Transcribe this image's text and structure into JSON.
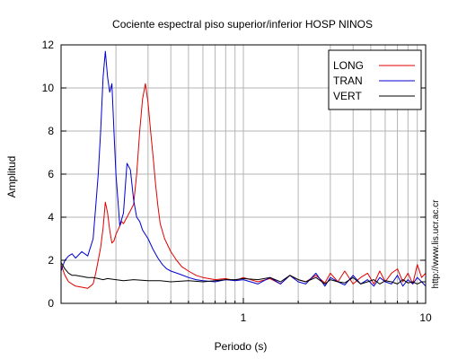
{
  "chart_data": {
    "type": "line",
    "title": "Cociente espectral piso superior/inferior  HOSP NINOS",
    "xlabel": "Periodo (s)",
    "ylabel": "Amplitud",
    "x_scale": "log",
    "xlim": [
      0.1,
      10
    ],
    "ylim": [
      0,
      12
    ],
    "x_tick_labels": [
      {
        "value": 1,
        "label": "1"
      },
      {
        "value": 10,
        "label": "10"
      }
    ],
    "y_ticks": [
      0,
      2,
      4,
      6,
      8,
      10,
      12
    ],
    "grid": true,
    "legend_position": "top-right",
    "credit": "http://www.lis.ucr.ac.cr",
    "series": [
      {
        "name": "LONG",
        "color": "#e00000",
        "x": [
          0.1,
          0.105,
          0.11,
          0.115,
          0.12,
          0.13,
          0.14,
          0.15,
          0.155,
          0.16,
          0.165,
          0.17,
          0.175,
          0.18,
          0.185,
          0.19,
          0.195,
          0.2,
          0.205,
          0.21,
          0.215,
          0.22,
          0.23,
          0.24,
          0.25,
          0.26,
          0.27,
          0.28,
          0.29,
          0.3,
          0.31,
          0.32,
          0.33,
          0.34,
          0.35,
          0.37,
          0.4,
          0.43,
          0.46,
          0.5,
          0.55,
          0.6,
          0.7,
          0.8,
          0.9,
          1.0,
          1.2,
          1.4,
          1.6,
          1.8,
          2.0,
          2.2,
          2.5,
          2.8,
          3.0,
          3.3,
          3.6,
          4.0,
          4.4,
          4.8,
          5.2,
          5.6,
          6.0,
          6.5,
          7.0,
          7.5,
          8.0,
          8.5,
          9.0,
          9.5,
          10.0
        ],
        "values": [
          1.8,
          1.3,
          1.0,
          0.9,
          0.8,
          0.75,
          0.7,
          0.9,
          1.4,
          2.0,
          2.6,
          3.5,
          4.7,
          4.2,
          3.4,
          2.8,
          2.9,
          3.2,
          3.4,
          3.6,
          3.8,
          3.7,
          4.0,
          4.3,
          4.6,
          6.0,
          8.0,
          9.5,
          10.2,
          9.3,
          8.0,
          6.8,
          5.5,
          4.5,
          3.7,
          3.0,
          2.4,
          2.0,
          1.7,
          1.5,
          1.3,
          1.2,
          1.1,
          1.15,
          1.05,
          1.2,
          1.0,
          1.15,
          0.9,
          1.3,
          1.1,
          1.0,
          1.3,
          0.95,
          1.4,
          1.0,
          1.5,
          0.9,
          1.2,
          1.4,
          0.9,
          1.5,
          1.0,
          1.4,
          1.6,
          1.0,
          1.4,
          0.9,
          1.8,
          1.2,
          1.4
        ]
      },
      {
        "name": "TRAN",
        "color": "#0000d0",
        "x": [
          0.1,
          0.105,
          0.11,
          0.115,
          0.12,
          0.13,
          0.14,
          0.15,
          0.155,
          0.16,
          0.165,
          0.17,
          0.175,
          0.18,
          0.185,
          0.19,
          0.195,
          0.2,
          0.205,
          0.21,
          0.22,
          0.23,
          0.24,
          0.25,
          0.26,
          0.27,
          0.28,
          0.3,
          0.32,
          0.34,
          0.36,
          0.38,
          0.4,
          0.45,
          0.5,
          0.55,
          0.6,
          0.7,
          0.8,
          0.9,
          1.0,
          1.2,
          1.4,
          1.6,
          1.8,
          2.0,
          2.2,
          2.5,
          2.8,
          3.0,
          3.3,
          3.6,
          4.0,
          4.4,
          4.8,
          5.2,
          5.6,
          6.0,
          6.5,
          7.0,
          7.5,
          8.0,
          8.5,
          9.0,
          9.5,
          10.0
        ],
        "values": [
          1.5,
          2.0,
          2.2,
          2.3,
          2.1,
          2.4,
          2.2,
          3.0,
          4.5,
          6.0,
          8.0,
          10.5,
          11.7,
          10.5,
          9.8,
          10.2,
          8.0,
          6.0,
          4.8,
          3.6,
          4.2,
          6.5,
          6.2,
          4.8,
          4.0,
          3.8,
          3.4,
          3.0,
          2.5,
          2.1,
          1.8,
          1.6,
          1.5,
          1.35,
          1.2,
          1.1,
          1.05,
          1.0,
          1.1,
          1.05,
          1.1,
          0.9,
          1.2,
          0.9,
          1.3,
          1.0,
          0.9,
          1.4,
          0.8,
          1.2,
          1.0,
          0.85,
          1.3,
          0.9,
          1.1,
          0.8,
          1.2,
          1.0,
          0.9,
          1.3,
          0.8,
          1.1,
          0.9,
          1.2,
          1.0,
          0.8
        ]
      },
      {
        "name": "VERT",
        "color": "#000000",
        "x": [
          0.1,
          0.105,
          0.11,
          0.115,
          0.12,
          0.13,
          0.14,
          0.15,
          0.16,
          0.17,
          0.18,
          0.2,
          0.22,
          0.25,
          0.3,
          0.35,
          0.4,
          0.5,
          0.6,
          0.7,
          0.8,
          0.9,
          1.0,
          1.2,
          1.4,
          1.6,
          1.8,
          2.0,
          2.2,
          2.5,
          2.8,
          3.0,
          3.3,
          3.6,
          4.0,
          4.4,
          4.8,
          5.2,
          5.6,
          6.0,
          6.5,
          7.0,
          7.5,
          8.0,
          8.5,
          9.0,
          9.5,
          10.0
        ],
        "values": [
          1.9,
          1.6,
          1.4,
          1.3,
          1.3,
          1.25,
          1.2,
          1.2,
          1.15,
          1.1,
          1.15,
          1.1,
          1.05,
          1.1,
          1.05,
          1.05,
          1.0,
          1.05,
          1.0,
          1.05,
          1.1,
          1.1,
          1.15,
          1.1,
          1.2,
          1.0,
          1.3,
          1.1,
          1.0,
          1.2,
          0.9,
          1.1,
          1.0,
          0.95,
          1.2,
          0.9,
          1.0,
          1.1,
          0.9,
          1.05,
          1.0,
          0.9,
          1.1,
          0.95,
          1.0,
          0.9,
          1.0,
          1.0
        ]
      }
    ]
  }
}
